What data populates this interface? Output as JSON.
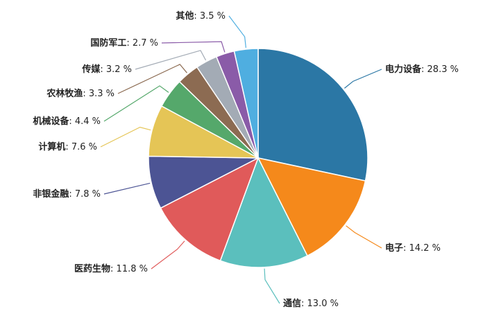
{
  "chart_data": {
    "type": "pie",
    "categories": [
      "电力设备",
      "电子",
      "通信",
      "医药生物",
      "非银金融",
      "计算机",
      "机械设备",
      "农林牧渔",
      "传媒",
      "国防军工",
      "其他"
    ],
    "values": [
      28.3,
      14.2,
      13.0,
      11.8,
      7.8,
      7.6,
      4.4,
      3.3,
      3.2,
      2.7,
      3.5
    ],
    "value_labels": [
      ": 28.3 %",
      ": 14.2 %",
      ": 13.0 %",
      ": 11.8 %",
      ": 7.8 %",
      ": 7.6 %",
      ": 4.4 %",
      ": 3.3 %",
      ": 3.2 %",
      ": 2.7 %",
      ": 3.5 %"
    ],
    "colors": [
      "#2b77a5",
      "#f5891b",
      "#5bbfbd",
      "#e05a5a",
      "#4c5494",
      "#e5c556",
      "#55a86b",
      "#8c6b52",
      "#a3abb5",
      "#8a5ba8",
      "#4faee0"
    ]
  }
}
